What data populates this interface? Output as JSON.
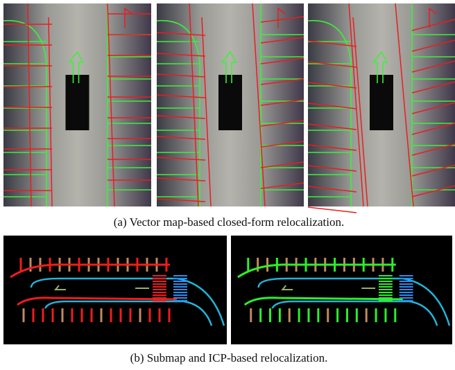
{
  "figure": {
    "subfigures": [
      {
        "caption": "(a) Vector map-based closed-form relocalization."
      },
      {
        "caption": "(b) Submap and ICP-based relocalization."
      }
    ]
  }
}
